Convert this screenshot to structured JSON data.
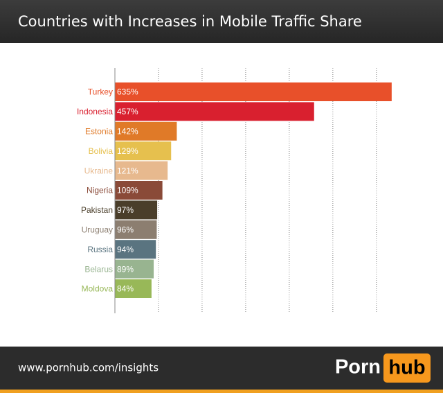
{
  "chart_data": {
    "type": "bar",
    "orientation": "horizontal",
    "title": "Countries with Increases in Mobile Traffic Share",
    "categories": [
      "Turkey",
      "Indonesia",
      "Estonia",
      "Bolivia",
      "Ukraine",
      "Nigeria",
      "Pakistan",
      "Uruguay",
      "Russia",
      "Belarus",
      "Moldova"
    ],
    "values": [
      635,
      457,
      142,
      129,
      121,
      109,
      97,
      96,
      94,
      89,
      84
    ],
    "value_labels": [
      "635%",
      "457%",
      "142%",
      "129%",
      "121%",
      "109%",
      "97%",
      "96%",
      "94%",
      "89%",
      "84%"
    ],
    "colors": [
      "#e8502a",
      "#d9202f",
      "#e07a28",
      "#e6c04e",
      "#e7b98e",
      "#8a4a38",
      "#4a3e2a",
      "#8c7e70",
      "#5a7480",
      "#98b490",
      "#98b858"
    ],
    "xlim": [
      0,
      640
    ],
    "xticks": [
      100,
      200,
      300,
      400,
      500,
      600
    ],
    "grid": true,
    "source": "www.pornhub.com/insights",
    "logo": [
      "Porn",
      "hub"
    ]
  }
}
